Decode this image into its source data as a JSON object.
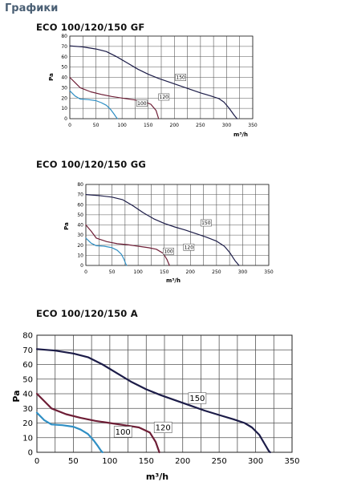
{
  "heading": "Графики",
  "chart_titles": [
    "ECO 100/120/150 GF",
    "ECO 100/120/150 GG",
    "ECO 100/120/150 A"
  ],
  "colors": {
    "s100": "#2f8fc4",
    "s120": "#6e1e36",
    "s150": "#1c1c48",
    "grid": "#555555"
  },
  "chart_data": [
    {
      "type": "line",
      "title": "ECO 100/120/150 GF",
      "xlabel": "m³/h",
      "ylabel": "Pa",
      "xlim": [
        0,
        350
      ],
      "ylim": [
        0,
        80
      ],
      "xticks": [
        0,
        50,
        100,
        150,
        200,
        250,
        300,
        350
      ],
      "yticks": [
        0,
        10,
        20,
        30,
        40,
        50,
        60,
        70,
        80
      ],
      "grid": true,
      "series": [
        {
          "name": "150",
          "x": [
            0,
            25,
            50,
            70,
            90,
            110,
            130,
            150,
            170,
            190,
            210,
            230,
            250,
            270,
            285,
            295,
            305,
            315,
            320
          ],
          "y": [
            70.5,
            69.5,
            67.5,
            65,
            60,
            54,
            48,
            43,
            39,
            35.5,
            32,
            28.5,
            25,
            22,
            19.5,
            16,
            10,
            3,
            0
          ]
        },
        {
          "name": "120",
          "x": [
            0,
            10,
            20,
            40,
            60,
            80,
            100,
            120,
            140,
            155,
            165,
            170
          ],
          "y": [
            40,
            35,
            30,
            26,
            23.5,
            21.5,
            20,
            18.5,
            17,
            14,
            8,
            0
          ]
        },
        {
          "name": "100",
          "x": [
            0,
            10,
            20,
            35,
            50,
            60,
            70,
            78,
            84,
            88,
            91
          ],
          "y": [
            27,
            22,
            19,
            18.5,
            17.5,
            15.5,
            13,
            9,
            5,
            2,
            0
          ]
        }
      ]
    },
    {
      "type": "line",
      "title": "ECO 100/120/150 GG",
      "xlabel": "m³/h",
      "ylabel": "Pa",
      "xlim": [
        0,
        350
      ],
      "ylim": [
        0,
        80
      ],
      "xticks": [
        0,
        50,
        100,
        150,
        200,
        250,
        300,
        350
      ],
      "yticks": [
        0,
        10,
        20,
        30,
        40,
        50,
        60,
        70,
        80
      ],
      "grid": true,
      "series": [
        {
          "name": "150",
          "x": [
            0,
            25,
            50,
            70,
            90,
            110,
            130,
            150,
            170,
            190,
            210,
            230,
            250,
            265,
            275,
            285,
            293
          ],
          "y": [
            70,
            69,
            67.5,
            65,
            59,
            52,
            46,
            41.5,
            38,
            35,
            31.5,
            28,
            24,
            19,
            13,
            5,
            0
          ]
        },
        {
          "name": "120",
          "x": [
            0,
            10,
            20,
            40,
            60,
            80,
            100,
            120,
            135,
            148,
            155,
            160
          ],
          "y": [
            40,
            34,
            27,
            23.5,
            21.5,
            20.5,
            19,
            17.5,
            16,
            12,
            6,
            0
          ]
        },
        {
          "name": "100",
          "x": [
            0,
            10,
            20,
            35,
            50,
            60,
            68,
            73,
            76,
            78
          ],
          "y": [
            27,
            22,
            19.5,
            19,
            17.5,
            15,
            11,
            6,
            2,
            0
          ]
        }
      ]
    },
    {
      "type": "line",
      "title": "ECO 100/120/150 A",
      "xlabel": "m³/h",
      "ylabel": "Pa",
      "xlim": [
        0,
        350
      ],
      "ylim": [
        0,
        80
      ],
      "xticks": [
        0,
        50,
        100,
        150,
        200,
        250,
        300,
        350
      ],
      "yticks": [
        0,
        10,
        20,
        30,
        40,
        50,
        60,
        70,
        80
      ],
      "grid": true,
      "series": [
        {
          "name": "150",
          "x": [
            0,
            25,
            50,
            70,
            90,
            110,
            130,
            150,
            170,
            190,
            210,
            230,
            250,
            270,
            285,
            295,
            305,
            312,
            318,
            320
          ],
          "y": [
            70.5,
            69.5,
            67.5,
            65,
            60,
            54,
            48,
            43,
            39,
            35.5,
            32,
            28.5,
            25.5,
            22.5,
            20,
            17,
            12,
            6,
            1,
            0
          ]
        },
        {
          "name": "120",
          "x": [
            0,
            10,
            20,
            40,
            60,
            80,
            100,
            120,
            140,
            155,
            163,
            168
          ],
          "y": [
            40,
            35,
            30,
            26,
            23.5,
            21.5,
            20,
            18.5,
            17,
            13.5,
            7,
            0
          ]
        },
        {
          "name": "100",
          "x": [
            0,
            10,
            20,
            35,
            50,
            60,
            70,
            78,
            84,
            88,
            90
          ],
          "y": [
            27,
            22,
            19,
            18.5,
            17.5,
            15.5,
            12.5,
            8,
            4,
            1,
            0
          ]
        }
      ]
    }
  ]
}
